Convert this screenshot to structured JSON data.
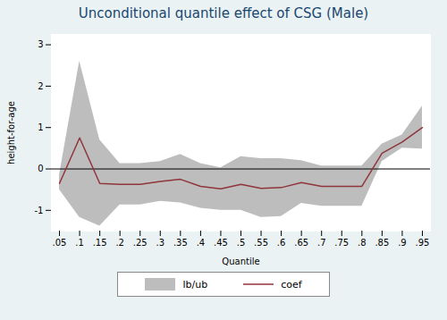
{
  "chart_data": {
    "type": "line",
    "title": "Unconditional quantile effect of CSG (Male)",
    "x_label": "Quantile",
    "y_label": "height-for-age",
    "x": [
      0.05,
      0.1,
      0.15,
      0.2,
      0.25,
      0.3,
      0.35,
      0.4,
      0.45,
      0.5,
      0.55,
      0.6,
      0.65,
      0.7,
      0.75,
      0.8,
      0.85,
      0.9,
      0.95
    ],
    "series": [
      {
        "name": "lb/ub",
        "type": "area",
        "color": "#bdbdbd",
        "lower": [
          -0.5,
          -1.17,
          -1.38,
          -0.87,
          -0.87,
          -0.78,
          -0.82,
          -0.95,
          -1.0,
          -1.0,
          -1.17,
          -1.15,
          -0.83,
          -0.9,
          -0.9,
          -0.9,
          0.18,
          0.5,
          0.48
        ],
        "upper": [
          -0.15,
          2.6,
          0.7,
          0.13,
          0.13,
          0.18,
          0.35,
          0.13,
          0.03,
          0.3,
          0.25,
          0.25,
          0.2,
          0.07,
          0.07,
          0.07,
          0.6,
          0.82,
          1.52
        ]
      },
      {
        "name": "coef",
        "type": "line",
        "color": "#90353b",
        "values": [
          -0.35,
          0.75,
          -0.35,
          -0.37,
          -0.37,
          -0.3,
          -0.25,
          -0.42,
          -0.48,
          -0.37,
          -0.47,
          -0.45,
          -0.33,
          -0.42,
          -0.42,
          -0.42,
          0.38,
          0.65,
          1.0
        ]
      }
    ],
    "reference_lines": [
      0
    ],
    "xlim": [
      0.03,
      0.97
    ],
    "xticks": [
      {
        "value": 0.05,
        "label": ".05"
      },
      {
        "value": 0.1,
        "label": ".1"
      },
      {
        "value": 0.15,
        "label": ".15"
      },
      {
        "value": 0.2,
        "label": ".2"
      },
      {
        "value": 0.25,
        "label": ".25"
      },
      {
        "value": 0.3,
        "label": ".3"
      },
      {
        "value": 0.35,
        "label": ".35"
      },
      {
        "value": 0.4,
        "label": ".4"
      },
      {
        "value": 0.45,
        "label": ".45"
      },
      {
        "value": 0.5,
        "label": ".5"
      },
      {
        "value": 0.55,
        "label": ".55"
      },
      {
        "value": 0.6,
        "label": ".6"
      },
      {
        "value": 0.65,
        "label": ".65"
      },
      {
        "value": 0.7,
        "label": ".7"
      },
      {
        "value": 0.75,
        "label": ".75"
      },
      {
        "value": 0.8,
        "label": ".8"
      },
      {
        "value": 0.85,
        "label": ".85"
      },
      {
        "value": 0.9,
        "label": ".9"
      },
      {
        "value": 0.95,
        "label": ".95"
      }
    ],
    "ylim": [
      -1.5,
      3.25
    ],
    "yticks": [
      -1,
      0,
      1,
      2,
      3
    ],
    "grid": false,
    "legend": "bottom"
  }
}
